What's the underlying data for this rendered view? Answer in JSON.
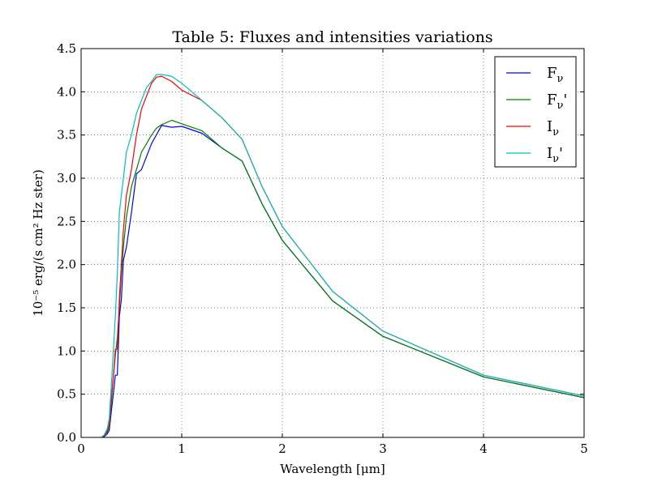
{
  "chart_data": {
    "type": "line",
    "title": "Table 5: Fluxes and intensities variations",
    "xlabel": "Wavelength [μm]",
    "ylabel": "10⁻⁵ erg/(s cm² Hz ster)",
    "xlim": [
      0,
      5
    ],
    "ylim": [
      0,
      4.5
    ],
    "xticks": [
      0,
      1,
      2,
      3,
      4,
      5
    ],
    "xtick_labels": [
      "0",
      "1",
      "2",
      "3",
      "4",
      "5"
    ],
    "yticks": [
      0.0,
      0.5,
      1.0,
      1.5,
      2.0,
      2.5,
      3.0,
      3.5,
      4.0,
      4.5
    ],
    "ytick_labels": [
      "0.0",
      "0.5",
      "1.0",
      "1.5",
      "2.0",
      "2.5",
      "3.0",
      "3.5",
      "4.0",
      "4.5"
    ],
    "grid": true,
    "legend_position": "top-right",
    "series": [
      {
        "name": "Fν",
        "name_base": "F",
        "name_sub": "ν",
        "name_suffix": "",
        "color": "#0000ff",
        "x": [
          0.2,
          0.23,
          0.26,
          0.28,
          0.3,
          0.32,
          0.34,
          0.36,
          0.37,
          0.38,
          0.4,
          0.42,
          0.45,
          0.5,
          0.55,
          0.6,
          0.7,
          0.8,
          0.9,
          1.0,
          1.2,
          1.4,
          1.6,
          1.8,
          2.0,
          2.5,
          3.0,
          4.0,
          5.0
        ],
        "y": [
          0.0,
          0.01,
          0.04,
          0.08,
          0.3,
          0.5,
          0.72,
          0.72,
          1.05,
          1.4,
          1.6,
          2.05,
          2.2,
          2.6,
          3.05,
          3.1,
          3.4,
          3.61,
          3.59,
          3.6,
          3.52,
          3.35,
          3.2,
          2.7,
          2.28,
          1.58,
          1.17,
          0.7,
          0.46
        ]
      },
      {
        "name": "Fν'",
        "name_base": "F",
        "name_sub": "ν",
        "name_suffix": "'",
        "color": "#008000",
        "x": [
          0.2,
          0.23,
          0.26,
          0.28,
          0.3,
          0.32,
          0.34,
          0.36,
          0.38,
          0.4,
          0.42,
          0.45,
          0.5,
          0.55,
          0.6,
          0.65,
          0.7,
          0.75,
          0.8,
          0.9,
          1.0,
          1.2,
          1.4,
          1.6,
          1.8,
          2.0,
          2.5,
          3.0,
          4.0,
          5.0
        ],
        "y": [
          0.0,
          0.02,
          0.06,
          0.12,
          0.4,
          0.7,
          0.95,
          1.15,
          1.5,
          1.9,
          2.2,
          2.55,
          2.9,
          3.1,
          3.3,
          3.4,
          3.5,
          3.58,
          3.62,
          3.67,
          3.63,
          3.55,
          3.35,
          3.2,
          2.7,
          2.28,
          1.58,
          1.17,
          0.7,
          0.46
        ]
      },
      {
        "name": "Iν",
        "name_base": "I",
        "name_sub": "ν",
        "name_suffix": "",
        "color": "#ff0000",
        "x": [
          0.2,
          0.23,
          0.26,
          0.28,
          0.3,
          0.32,
          0.34,
          0.36,
          0.37,
          0.38,
          0.4,
          0.42,
          0.45,
          0.5,
          0.55,
          0.6,
          0.65,
          0.7,
          0.75,
          0.8,
          0.9,
          1.0,
          1.2,
          1.4,
          1.6,
          1.8,
          2.0,
          2.5,
          3.0,
          4.0,
          5.0
        ],
        "y": [
          0.0,
          0.02,
          0.08,
          0.15,
          0.45,
          0.7,
          1.02,
          1.02,
          1.3,
          1.6,
          2.0,
          2.4,
          2.8,
          3.1,
          3.5,
          3.8,
          3.95,
          4.1,
          4.17,
          4.18,
          4.12,
          4.02,
          3.9,
          3.7,
          3.45,
          2.9,
          2.44,
          1.69,
          1.23,
          0.72,
          0.48
        ]
      },
      {
        "name": "Iν'",
        "name_base": "I",
        "name_sub": "ν",
        "name_suffix": "'",
        "color": "#00bfbf",
        "x": [
          0.2,
          0.23,
          0.26,
          0.28,
          0.3,
          0.32,
          0.34,
          0.36,
          0.38,
          0.4,
          0.42,
          0.45,
          0.5,
          0.55,
          0.6,
          0.65,
          0.7,
          0.75,
          0.8,
          0.9,
          1.0,
          1.2,
          1.4,
          1.6,
          1.8,
          2.0,
          2.5,
          3.0,
          4.0,
          5.0
        ],
        "y": [
          0.0,
          0.03,
          0.1,
          0.22,
          0.6,
          1.0,
          1.4,
          1.9,
          2.6,
          2.8,
          3.0,
          3.3,
          3.5,
          3.75,
          3.9,
          4.05,
          4.12,
          4.2,
          4.2,
          4.18,
          4.1,
          3.9,
          3.7,
          3.45,
          2.9,
          2.44,
          1.69,
          1.23,
          0.72,
          0.48
        ]
      }
    ]
  }
}
